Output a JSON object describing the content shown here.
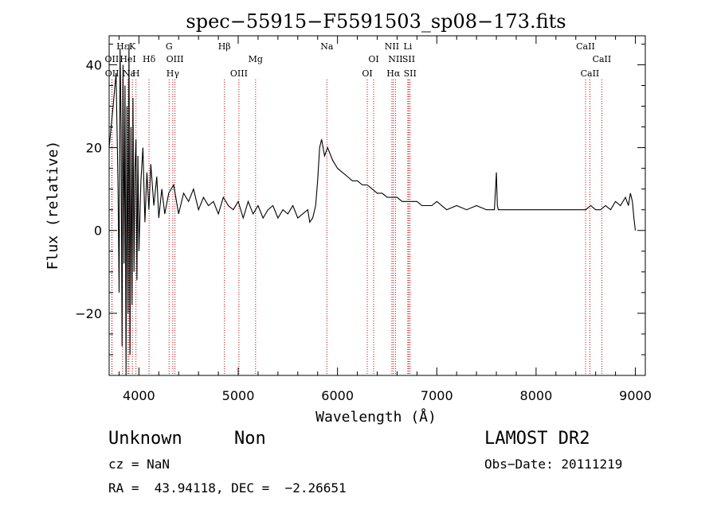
{
  "chart_data": {
    "type": "line",
    "title": "spec−55915−F5591503_sp08−173.fits",
    "xlabel": "Wavelength (Å)",
    "ylabel": "Flux (relative)",
    "xlim": [
      3700,
      9100
    ],
    "ylim": [
      -35,
      47
    ],
    "x_ticks": [
      4000,
      5000,
      6000,
      7000,
      8000,
      9000
    ],
    "x_tick_labels": [
      "4000",
      "5000",
      "6000",
      "7000",
      "8000",
      "9000"
    ],
    "y_ticks": [
      -20,
      0,
      20,
      40
    ],
    "y_tick_labels": [
      "−20",
      "0",
      "20",
      "40"
    ],
    "line_color": "#000000",
    "marker_color": "#cc0000",
    "spectrum": {
      "x": [
        3700,
        3740,
        3770,
        3790,
        3800,
        3810,
        3820,
        3830,
        3840,
        3850,
        3860,
        3870,
        3880,
        3890,
        3900,
        3910,
        3920,
        3930,
        3940,
        3950,
        3960,
        3970,
        3980,
        3990,
        4000,
        4020,
        4040,
        4060,
        4080,
        4100,
        4120,
        4150,
        4180,
        4200,
        4230,
        4260,
        4300,
        4350,
        4400,
        4450,
        4500,
        4550,
        4600,
        4650,
        4700,
        4750,
        4800,
        4850,
        4900,
        4950,
        5000,
        5050,
        5100,
        5150,
        5200,
        5250,
        5300,
        5350,
        5400,
        5450,
        5500,
        5550,
        5600,
        5650,
        5700,
        5720,
        5750,
        5780,
        5800,
        5820,
        5840,
        5870,
        5900,
        5950,
        6000,
        6050,
        6100,
        6150,
        6200,
        6250,
        6300,
        6350,
        6400,
        6450,
        6500,
        6550,
        6600,
        6650,
        6700,
        6750,
        6800,
        6850,
        6900,
        6950,
        7000,
        7100,
        7200,
        7300,
        7400,
        7500,
        7580,
        7600,
        7610,
        7620,
        7650,
        7700,
        7800,
        7900,
        8000,
        8100,
        8200,
        8300,
        8400,
        8500,
        8550,
        8600,
        8650,
        8700,
        8750,
        8800,
        8850,
        8900,
        8930,
        8950,
        8970,
        8985,
        9000
      ],
      "y": [
        20,
        30,
        38,
        10,
        -15,
        44,
        25,
        -28,
        40,
        -8,
        35,
        -35,
        30,
        -20,
        45,
        -30,
        25,
        -18,
        32,
        -10,
        15,
        22,
        -12,
        18,
        -5,
        12,
        20,
        2,
        14,
        5,
        16,
        6,
        13,
        3,
        10,
        4,
        9,
        11,
        4,
        9,
        7,
        10,
        5,
        8,
        6,
        7,
        4,
        8,
        6,
        5,
        7,
        3,
        7,
        4,
        6,
        3,
        5,
        6,
        3,
        5,
        4,
        6,
        3,
        4,
        5,
        2,
        3,
        6,
        12,
        20,
        22,
        18,
        20,
        17,
        15,
        14,
        13,
        12,
        12,
        11,
        11,
        10,
        9,
        9,
        8,
        8,
        8,
        7,
        7,
        7,
        7,
        6,
        6,
        6,
        7,
        5,
        6,
        5,
        6,
        5,
        5,
        14,
        6,
        5,
        5,
        5,
        5,
        5,
        5,
        5,
        5,
        5,
        5,
        5,
        6,
        5,
        5,
        6,
        5,
        7,
        6,
        8,
        6,
        9,
        7,
        3,
        0
      ]
    },
    "lines": [
      {
        "label": "Hε",
        "x": 3835,
        "row": 0
      },
      {
        "label": "OII",
        "x": 3727,
        "row": 1
      },
      {
        "label": "OII",
        "x": 3729,
        "row": 2
      },
      {
        "label": "HeI",
        "x": 3889,
        "row": 1
      },
      {
        "label": "K",
        "x": 3934,
        "row": 0
      },
      {
        "label": "Na",
        "x": 3900,
        "row": 2
      },
      {
        "label": "H",
        "x": 3970,
        "row": 2
      },
      {
        "label": "Hδ",
        "x": 4102,
        "row": 1
      },
      {
        "label": "G",
        "x": 4304,
        "row": 0
      },
      {
        "label": "OIII",
        "x": 4363,
        "row": 1
      },
      {
        "label": "Hγ",
        "x": 4341,
        "row": 2
      },
      {
        "label": "Hβ",
        "x": 4861,
        "row": 0
      },
      {
        "label": "OIII",
        "x": 5007,
        "row": 2
      },
      {
        "label": "Mg",
        "x": 5175,
        "row": 1
      },
      {
        "label": "Na",
        "x": 5893,
        "row": 0
      },
      {
        "label": "OI",
        "x": 6364,
        "row": 1
      },
      {
        "label": "OI",
        "x": 6300,
        "row": 2
      },
      {
        "label": "NII",
        "x": 6548,
        "row": 0
      },
      {
        "label": "Li",
        "x": 6708,
        "row": 0
      },
      {
        "label": "NII",
        "x": 6584,
        "row": 1
      },
      {
        "label": "SII",
        "x": 6717,
        "row": 1
      },
      {
        "label": "Hα",
        "x": 6563,
        "row": 2
      },
      {
        "label": "SII",
        "x": 6731,
        "row": 2
      },
      {
        "label": "CaII",
        "x": 8498,
        "row": 0
      },
      {
        "label": "CaII",
        "x": 8662,
        "row": 1
      },
      {
        "label": "CaII",
        "x": 8542,
        "row": 2
      }
    ]
  },
  "info": {
    "class": "Unknown",
    "subclass": "Non",
    "cz": "cz = NaN",
    "coords": "RA =  43.94118, DEC =  −2.26651",
    "survey": "LAMOST DR2",
    "obs_date": "Obs−Date: 20111219"
  }
}
